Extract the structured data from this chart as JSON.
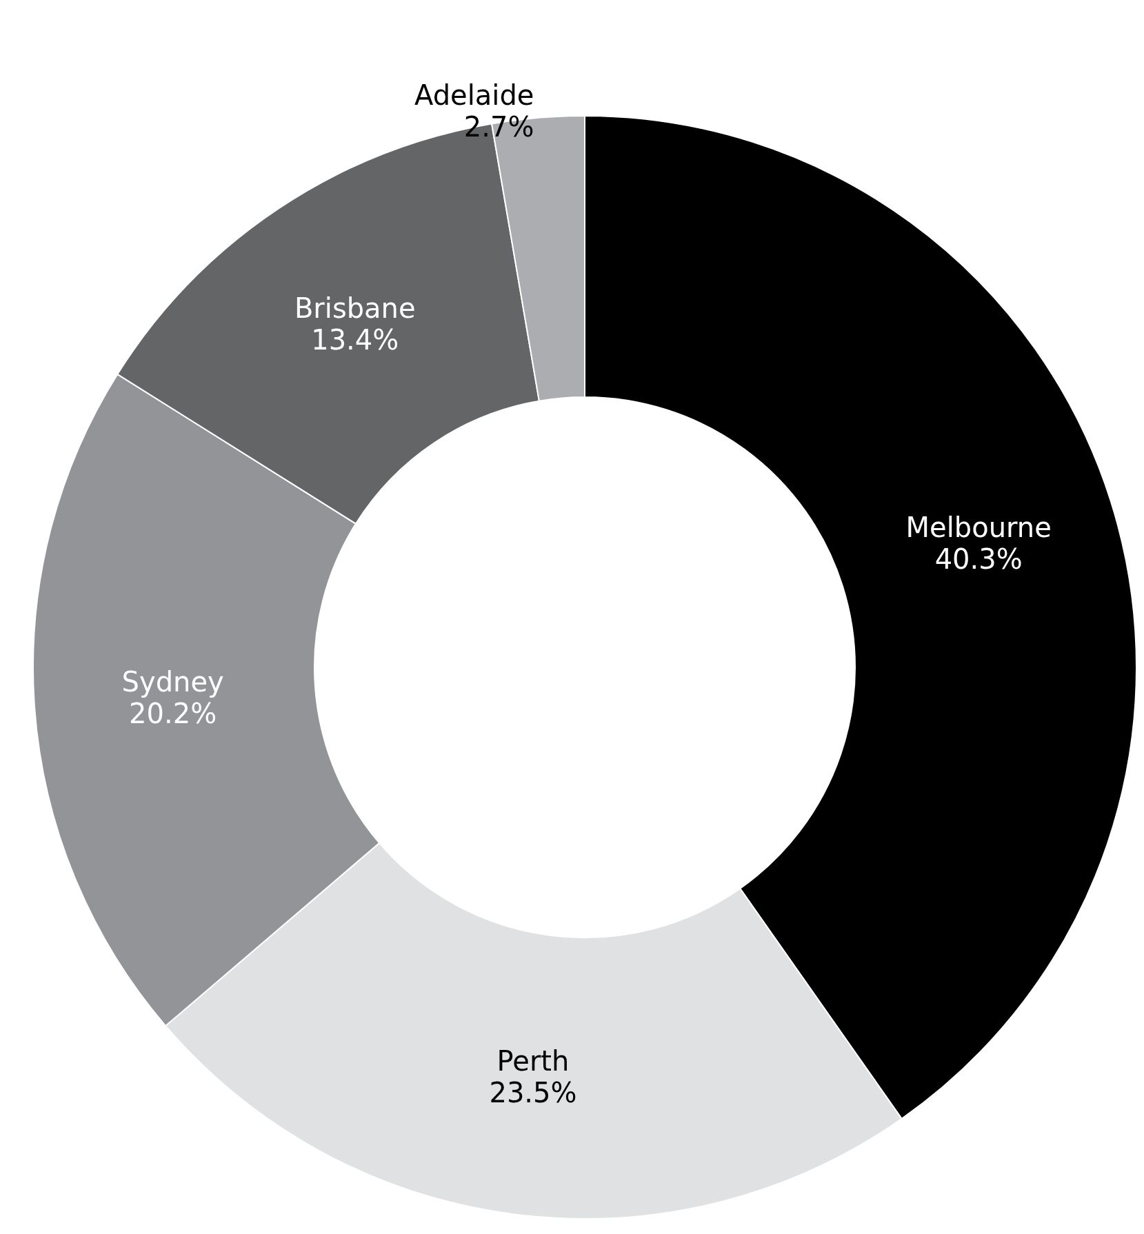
{
  "chart_data": {
    "type": "donut",
    "categories": [
      "Melbourne",
      "Perth",
      "Sydney",
      "Brisbane",
      "Adelaide"
    ],
    "values": [
      40.3,
      23.5,
      20.2,
      13.4,
      2.7
    ],
    "value_labels": [
      "40.3%",
      "23.5%",
      "20.2%",
      "13.4%",
      "2.7%"
    ],
    "colors": [
      "#000000",
      "#e0e1e3",
      "#939497",
      "#646567",
      "#acadb0"
    ],
    "legend": false
  }
}
